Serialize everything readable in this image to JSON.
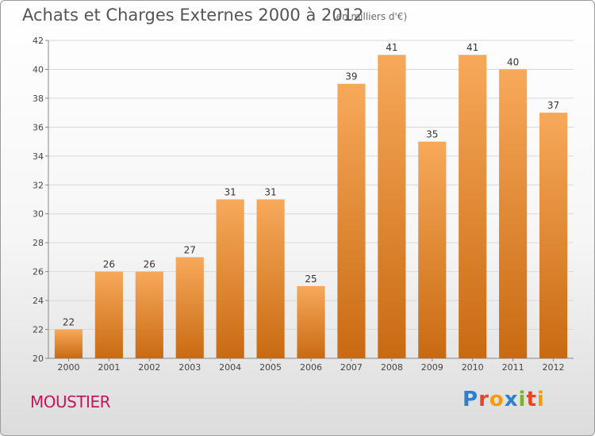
{
  "title": "Achats et Charges Externes 2000 à 2012",
  "unit": "(en milliers d'€)",
  "commune": "MOUSTIER",
  "logo": {
    "text": "Proxiti",
    "letter_colors": [
      "#2e7fd0",
      "#e8442b",
      "#f39c12",
      "#2e7fd0",
      "#7ab51d",
      "#e8442b",
      "#f39c12"
    ]
  },
  "colors": {
    "bar_top": "#f7a95a",
    "bar_bottom": "#c96a12",
    "grid": "#d8d8d8",
    "axis": "#888888"
  },
  "chart_data": {
    "type": "bar",
    "categories": [
      "2000",
      "2001",
      "2002",
      "2003",
      "2004",
      "2005",
      "2006",
      "2007",
      "2008",
      "2009",
      "2010",
      "2011",
      "2012"
    ],
    "values": [
      22,
      26,
      26,
      27,
      31,
      31,
      25,
      39,
      41,
      35,
      41,
      40,
      37
    ],
    "ylim": [
      20,
      42
    ],
    "yticks": [
      20,
      22,
      24,
      26,
      28,
      30,
      32,
      34,
      36,
      38,
      40,
      42
    ],
    "grid": true,
    "title": "Achats et Charges Externes 2000 à 2012",
    "xlabel": "",
    "ylabel": ""
  }
}
